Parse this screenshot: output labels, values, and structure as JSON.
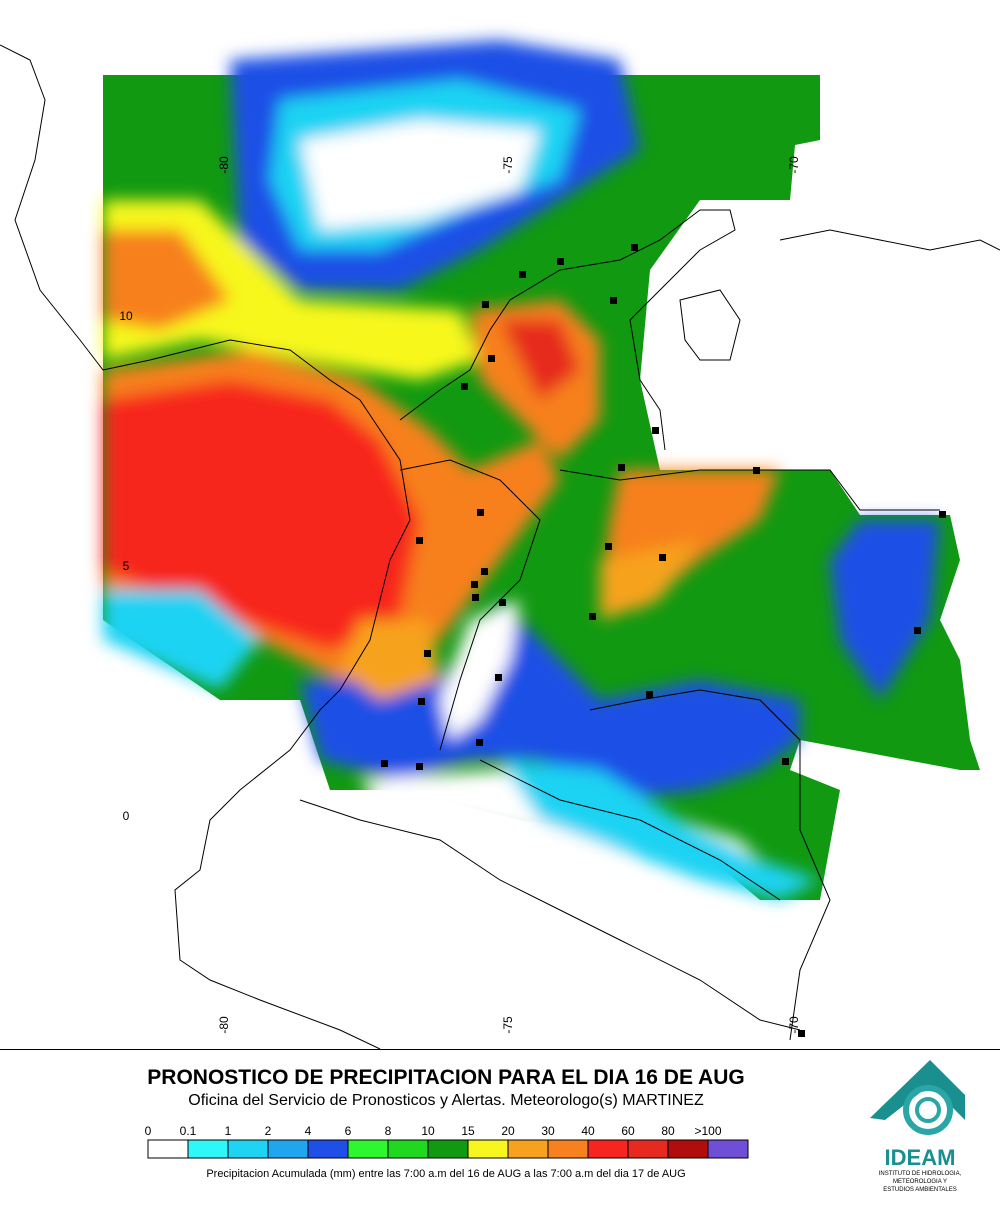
{
  "map": {
    "lon_labels_top": [
      "-80",
      "-75",
      "-70"
    ],
    "lon_labels_bottom": [
      "-80",
      "-75",
      "-70"
    ],
    "lat_labels": [
      "10",
      "5",
      "0"
    ]
  },
  "header": {
    "title": "PRONOSTICO DE PRECIPITACION PARA EL DIA 16 DE AUG",
    "subtitle": "Oficina del Servicio de Pronosticos y Alertas. Meteorologo(s) MARTINEZ"
  },
  "legend": {
    "labels": [
      "0",
      "0.1",
      "1",
      "2",
      "4",
      "6",
      "8",
      "10",
      "15",
      "20",
      "30",
      "40",
      "60",
      "80",
      ">100"
    ],
    "colors": [
      "#ffffff",
      "#2ff7f7",
      "#1fd3f3",
      "#1fa6ef",
      "#1f4fe6",
      "#2ff72f",
      "#1fd81f",
      "#119911",
      "#f7f71f",
      "#f7a21f",
      "#f7801f",
      "#f7251f",
      "#e62a1f",
      "#b00d0d",
      "#6f4fd6"
    ],
    "caption": "Precipitacion Acumulada (mm) entre las 7:00 a.m del 16 de AUG a las 7:00 a.m del dia 17 de AUG"
  },
  "logo": {
    "name": "IDEAM",
    "lines": [
      "INSTITUTO DE HIDROLOGIA,",
      "METEOROLOGIA Y",
      "ESTUDIOS AMBIENTALES"
    ]
  }
}
